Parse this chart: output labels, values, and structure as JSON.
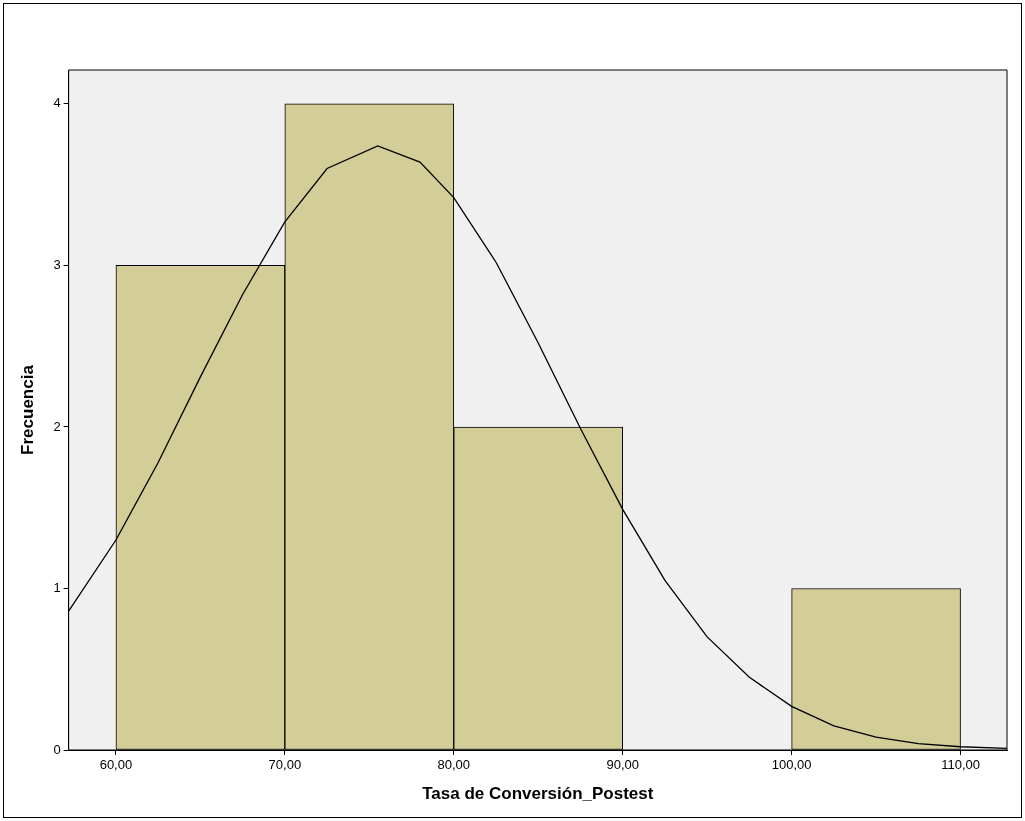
{
  "chart_data": {
    "type": "histogram",
    "xlabel": "Tasa de Conversión_Postest",
    "ylabel": "Frecuencia",
    "bins": [
      60,
      70,
      80,
      90,
      100,
      110
    ],
    "values": [
      3,
      4,
      2,
      0,
      1
    ],
    "color": "#d3cd98",
    "xlim": [
      57.2,
      112.75
    ],
    "xticks": [
      {
        "value": 60,
        "label": "60,00"
      },
      {
        "value": 70,
        "label": "70,00"
      },
      {
        "value": 80,
        "label": "80,00"
      },
      {
        "value": 90,
        "label": "90,00"
      },
      {
        "value": 100,
        "label": "100,00"
      },
      {
        "value": 110,
        "label": "110,00"
      }
    ],
    "ylim": [
      0,
      4.21
    ],
    "yticks": [
      0,
      1,
      2,
      3,
      4
    ],
    "grid": false,
    "legend": false,
    "series": [
      {
        "type": "line",
        "color": "#000000",
        "x": [
          57.2,
          60,
          62.5,
          65,
          67.5,
          70,
          72.5,
          75.5,
          78,
          80,
          82.5,
          85,
          87.5,
          90,
          92.5,
          95,
          97.5,
          100,
          102.5,
          105,
          107.5,
          110,
          112.75
        ],
        "values": [
          0.86,
          1.3,
          1.78,
          2.31,
          2.82,
          3.27,
          3.6,
          3.74,
          3.64,
          3.42,
          3.02,
          2.52,
          1.99,
          1.49,
          1.05,
          0.7,
          0.45,
          0.27,
          0.15,
          0.08,
          0.04,
          0.02,
          0.01
        ]
      }
    ]
  }
}
